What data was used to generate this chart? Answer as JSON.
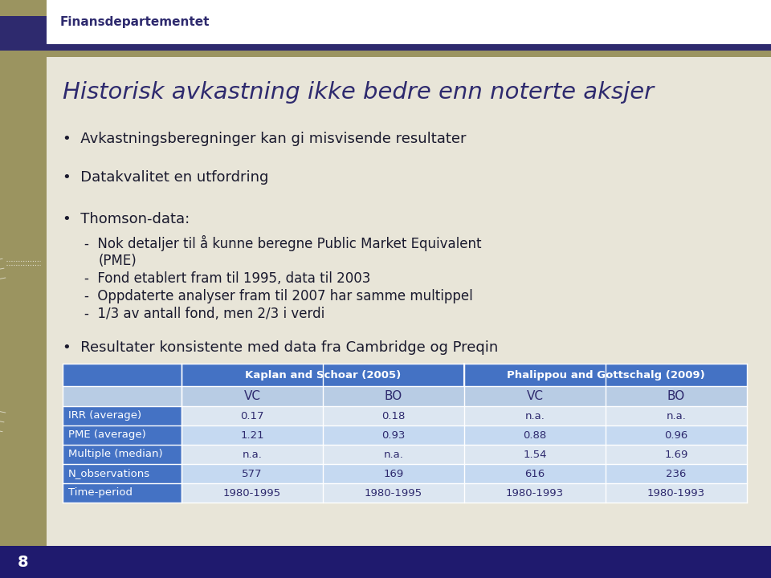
{
  "title": "Historisk avkastning ikke bedre enn noterte aksjer",
  "header_label": "Finansdepartementet",
  "bullet1": "Avkastningsberegninger kan gi misvisende resultater",
  "bullet2": "Datakvalitet en utfordring",
  "bullet3": "Thomson-data:",
  "sub1": "Nok detaljer til å kunne beregne Public Market Equivalent",
  "sub1b": "(PME)",
  "sub2": "Fond etablert fram til 1995, data til 2003",
  "sub3": "Oppdaterte analyser fram til 2007 har samme multippel",
  "sub4": "1/3 av antall fond, men 2/3 i verdi",
  "result_bullet": "Resultater konsistente med data fra Cambridge og Preqin",
  "table_header1": "Kaplan and Schoar (2005)",
  "table_header2": "Phalippou and Gottschalg (2009)",
  "col_headers": [
    "VC",
    "BO",
    "VC",
    "BO"
  ],
  "row_labels": [
    "IRR (average)",
    "PME (average)",
    "Multiple (median)",
    "N_observations",
    "Time-period"
  ],
  "table_data": [
    [
      "0.17",
      "0.18",
      "n.a.",
      "n.a."
    ],
    [
      "1.21",
      "0.93",
      "0.88",
      "0.96"
    ],
    [
      "n.a.",
      "n.a.",
      "1.54",
      "1.69"
    ],
    [
      "577",
      "169",
      "616",
      "236"
    ],
    [
      "1980-1995",
      "1980-1995",
      "1980-1993",
      "1980-1993"
    ]
  ],
  "slide_bg": "#e8e5d8",
  "left_bar_color": "#9b9460",
  "left_bar_dark": "#2e2a6e",
  "header_white_bg": "#ffffff",
  "header_bar_color": "#2e2a6e",
  "header_label_color": "#2e2a6e",
  "title_color": "#2e2a6e",
  "body_color": "#1a1a2e",
  "table_header_bg": "#4472c4",
  "table_header_fg": "#ffffff",
  "table_subheader_bg": "#b8cce4",
  "table_subheader_fg": "#2e2a6e",
  "table_label_bg": "#4472c4",
  "table_label_fg": "#ffffff",
  "table_row_bg1": "#dce6f1",
  "table_row_bg2": "#c5d9f1",
  "table_data_color": "#2e2a6e",
  "footer_bg": "#1f1a6e",
  "footer_fg": "#ffffff",
  "page_number": "8"
}
